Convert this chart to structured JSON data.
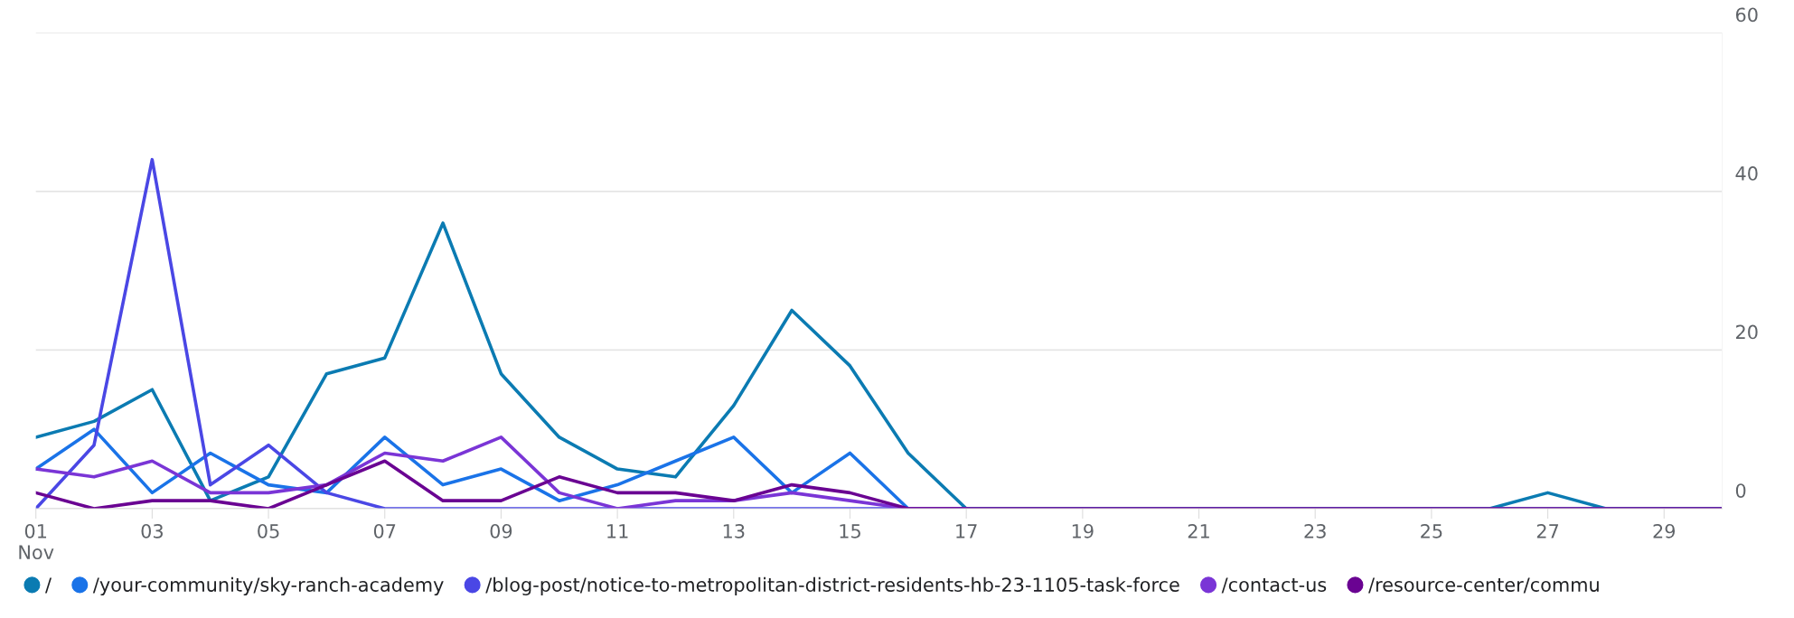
{
  "chart_data": {
    "type": "line",
    "x": [
      1,
      2,
      3,
      4,
      5,
      6,
      7,
      8,
      9,
      10,
      11,
      12,
      13,
      14,
      15,
      16,
      17,
      18,
      19,
      20,
      21,
      22,
      23,
      24,
      25,
      26,
      27,
      28,
      29,
      30
    ],
    "xlim": [
      1,
      30
    ],
    "xticks": [
      {
        "value": 1,
        "label": "01\nNov"
      },
      {
        "value": 3,
        "label": "03"
      },
      {
        "value": 5,
        "label": "05"
      },
      {
        "value": 7,
        "label": "07"
      },
      {
        "value": 9,
        "label": "09"
      },
      11,
      13,
      15,
      17,
      19,
      21,
      23,
      25,
      27,
      29
    ],
    "ylim": [
      0,
      60
    ],
    "yticks": [
      0,
      20,
      40,
      60
    ],
    "grid": "y",
    "legend": "bottom left",
    "marker": "none",
    "line_style": "solid",
    "series": [
      {
        "name": "/",
        "color": "#0b7bb2",
        "values": [
          9,
          11,
          15,
          1,
          4,
          17,
          19,
          36,
          17,
          9,
          5,
          4,
          13,
          25,
          18,
          7,
          0,
          0,
          0,
          0,
          0,
          0,
          0,
          0,
          0,
          0,
          2,
          0,
          0,
          0
        ]
      },
      {
        "name": "/your-community/sky-ranch-academy",
        "color": "#1a73e8",
        "values": [
          5,
          10,
          2,
          7,
          3,
          2,
          9,
          3,
          5,
          1,
          3,
          6,
          9,
          2,
          7,
          0,
          0,
          0,
          0,
          0,
          0,
          0,
          0,
          0,
          0,
          0,
          0,
          0,
          0,
          0
        ]
      },
      {
        "name": "/blog-post/notice-to-metropolitan-district-residents-hb-23-1105-task-force",
        "color": "#4a47e5",
        "values": [
          0,
          8,
          44,
          3,
          8,
          2,
          0,
          0,
          0,
          0,
          0,
          0,
          0,
          0,
          0,
          0,
          0,
          null,
          null,
          null,
          null,
          null,
          null,
          null,
          null,
          null,
          null,
          null,
          null,
          null
        ]
      },
      {
        "name": "/contact-us",
        "color": "#7a35d6",
        "values": [
          5,
          4,
          6,
          2,
          2,
          3,
          7,
          6,
          9,
          2,
          0,
          1,
          1,
          2,
          1,
          0,
          0,
          null,
          null,
          null,
          null,
          null,
          null,
          null,
          null,
          null,
          null,
          null,
          null,
          null
        ]
      },
      {
        "name": "/resource-center/commu",
        "color": "#6a0392",
        "values": [
          2,
          0,
          1,
          1,
          0,
          3,
          6,
          1,
          1,
          4,
          2,
          2,
          1,
          3,
          2,
          0,
          0,
          0,
          0,
          0,
          0,
          0,
          0,
          0,
          0,
          0,
          0,
          0,
          0,
          0
        ]
      }
    ]
  }
}
